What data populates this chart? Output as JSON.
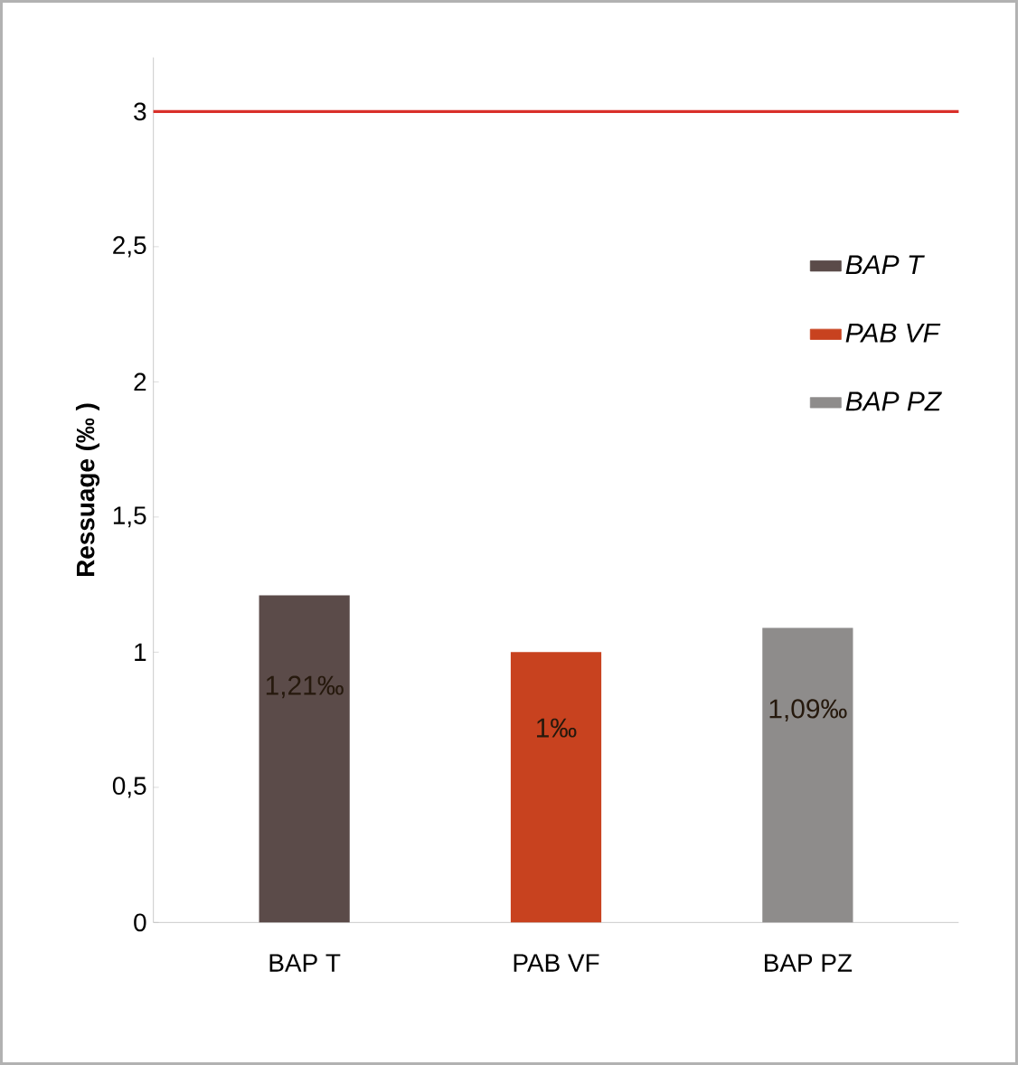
{
  "chart_data": {
    "type": "bar",
    "categories": [
      "BAP T",
      "PAB VF",
      "BAP PZ"
    ],
    "series": [
      {
        "name": "BAP T",
        "color": "#5b4b49",
        "values": [
          1.21,
          null,
          null
        ],
        "value_labels": [
          "1,21‰",
          null,
          null
        ]
      },
      {
        "name": "PAB VF",
        "color": "#c8421f",
        "values": [
          null,
          1,
          null
        ],
        "value_labels": [
          null,
          "1‰",
          null
        ]
      },
      {
        "name": "BAP PZ",
        "color": "#8e8c8b",
        "values": [
          null,
          null,
          1.09
        ],
        "value_labels": [
          null,
          null,
          "1,09‰"
        ]
      }
    ],
    "ylabel": "Ressuage (‰ )",
    "ylim": [
      0,
      3.2
    ],
    "yticks": [
      0,
      {
        "value": 0.5,
        "label": "0,5"
      },
      1,
      {
        "value": 1.5,
        "label": "1,5"
      },
      2,
      {
        "value": 2.5,
        "label": "2,5"
      },
      3
    ],
    "ref_lines": [
      {
        "axis": "y",
        "value": 3,
        "color": "#d9302a"
      }
    ],
    "legend": "right",
    "grid": false
  }
}
